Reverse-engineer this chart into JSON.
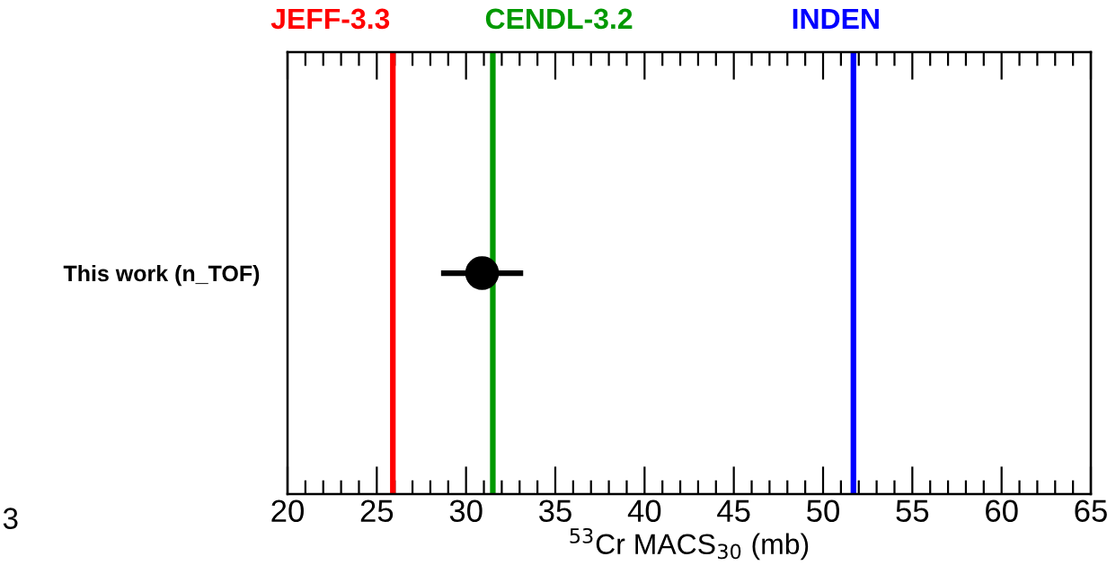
{
  "chart_data": {
    "type": "scatter",
    "categories": [
      "This work (n_TOF)"
    ],
    "values": [
      30.9
    ],
    "errors": [
      2.3
    ],
    "orientation": "horizontal",
    "color": "#000000",
    "marker": "circle",
    "xlabel": "$^{53}$Cr MACS$_{30}$ (mb)",
    "xlim": [
      20,
      65
    ],
    "xticks": [
      20,
      25,
      30,
      35,
      40,
      45,
      50,
      55,
      60,
      65
    ],
    "grid": false,
    "legend": false,
    "ref_lines": [
      {
        "axis": "x",
        "value": 25.9,
        "label": "JEFF-3.3",
        "color": "#ff0000"
      },
      {
        "axis": "x",
        "value": 31.5,
        "label": "CENDL-3.2",
        "color": "#009900"
      },
      {
        "axis": "x",
        "value": 51.7,
        "label": "INDEN",
        "color": "#0000ff"
      }
    ],
    "annotations": [
      "3"
    ]
  }
}
